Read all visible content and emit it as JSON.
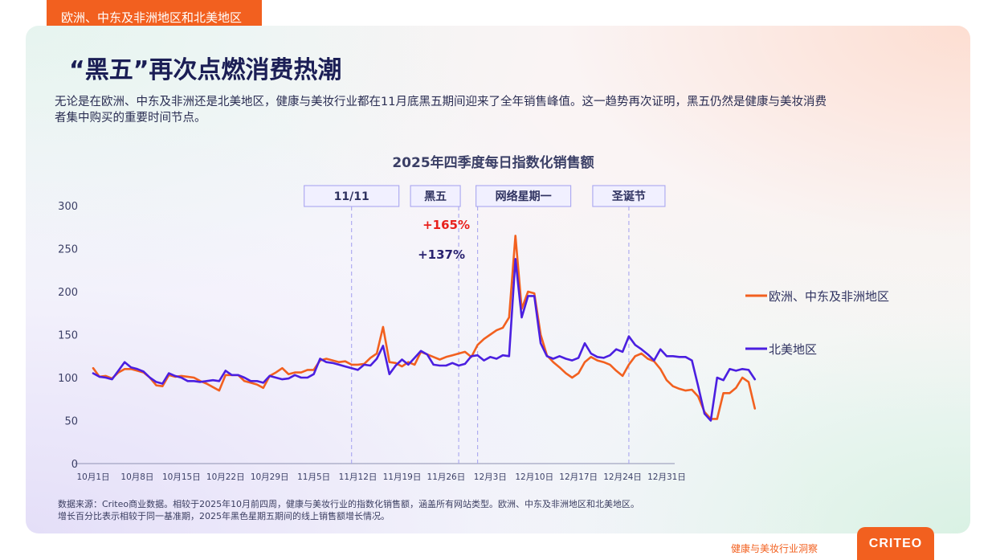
{
  "header": {
    "region_tab": "欧洲、中东及非洲地区和北美地区",
    "title": "“黑五”再次点燃消费热潮",
    "intro": "无论是在欧洲、中东及非洲还是北美地区，健康与美妆行业都在11月底黑五期间迎来了全年销售峰值。这一趋势再次证明，黑五仍然是健康与美妆消费者集中购买的重要时间节点。"
  },
  "footer": {
    "source_line1": "数据来源：Criteo商业数据。相较于2025年10月前四周，健康与美妆行业的指数化销售额，涵盖所有网站类型。欧洲、中东及非洲地区和北美地区。",
    "source_line2": "增长百分比表示相较于同一基准期，2025年黑色星期五期间的线上销售额增长情况。",
    "report_name": "健康与美妆行业洞察",
    "logo_text": "CRITEO"
  },
  "chart_data": {
    "type": "line",
    "title": "2025年四季度每日指数化销售额",
    "xlabel": "",
    "ylabel": "",
    "ylim": [
      0,
      300
    ],
    "y_ticks": [
      0,
      50,
      100,
      150,
      200,
      250,
      300
    ],
    "x_start": "2025-10-01",
    "x_end": "2025-12-31",
    "x_tick_labels": [
      "10月1日",
      "10月8日",
      "10月15日",
      "10月22日",
      "10月29日",
      "11月5日",
      "11月12日",
      "11月19日",
      "11月26日",
      "12月3日",
      "12月10日",
      "12月17日",
      "12月24日",
      "12月31日"
    ],
    "grid": false,
    "legend_position": "right",
    "events": [
      {
        "label": "11/11",
        "date": "2025-11-11"
      },
      {
        "label": "黑五",
        "date": "2025-11-28"
      },
      {
        "label": "网络星期一",
        "date": "2025-12-01"
      },
      {
        "label": "圣诞节",
        "date": "2025-12-25"
      }
    ],
    "annotations": [
      {
        "text": "+165%",
        "series": "欧洲、中东及非洲地区",
        "date": "2025-11-28",
        "color": "#e8201c"
      },
      {
        "text": "+137%",
        "series": "北美地区",
        "date": "2025-11-28",
        "color": "#2a2270"
      }
    ],
    "series": [
      {
        "name": "欧洲、中东及非洲地区",
        "color": "#f2601f",
        "values": [
          111,
          101,
          102,
          99,
          106,
          110,
          110,
          108,
          106,
          100,
          91,
          90,
          103,
          101,
          102,
          101,
          100,
          96,
          93,
          89,
          85,
          103,
          103,
          103,
          96,
          94,
          92,
          88,
          102,
          106,
          111,
          104,
          106,
          106,
          109,
          109,
          120,
          122,
          120,
          118,
          119,
          115,
          115,
          116,
          123,
          128,
          159,
          118,
          117,
          113,
          118,
          115,
          130,
          127,
          124,
          121,
          124,
          126,
          128,
          130,
          124,
          138,
          145,
          150,
          155,
          158,
          170,
          265,
          180,
          200,
          198,
          150,
          126,
          118,
          112,
          105,
          100,
          105,
          118,
          124,
          120,
          118,
          115,
          108,
          102,
          115,
          125,
          128,
          122,
          119,
          110,
          97,
          90,
          87,
          85,
          86,
          78,
          60,
          52,
          52,
          82,
          82,
          88,
          100,
          95,
          64
        ]
      },
      {
        "name": "北美地区",
        "color": "#4b1fe0",
        "values": [
          105,
          101,
          100,
          98,
          108,
          118,
          112,
          110,
          107,
          100,
          95,
          93,
          105,
          102,
          100,
          96,
          96,
          95,
          96,
          97,
          96,
          108,
          103,
          103,
          100,
          96,
          96,
          94,
          102,
          100,
          98,
          99,
          103,
          100,
          100,
          104,
          122,
          118,
          117,
          115,
          113,
          111,
          109,
          115,
          114,
          122,
          137,
          104,
          114,
          121,
          115,
          123,
          131,
          127,
          115,
          114,
          114,
          117,
          114,
          116,
          125,
          126,
          120,
          124,
          122,
          126,
          125,
          238,
          170,
          195,
          195,
          140,
          125,
          122,
          125,
          122,
          120,
          123,
          140,
          128,
          124,
          123,
          126,
          133,
          130,
          148,
          138,
          133,
          127,
          120,
          133,
          125,
          125,
          124,
          124,
          120,
          90,
          58,
          50,
          100,
          97,
          110,
          108,
          110,
          109,
          98
        ]
      }
    ]
  }
}
